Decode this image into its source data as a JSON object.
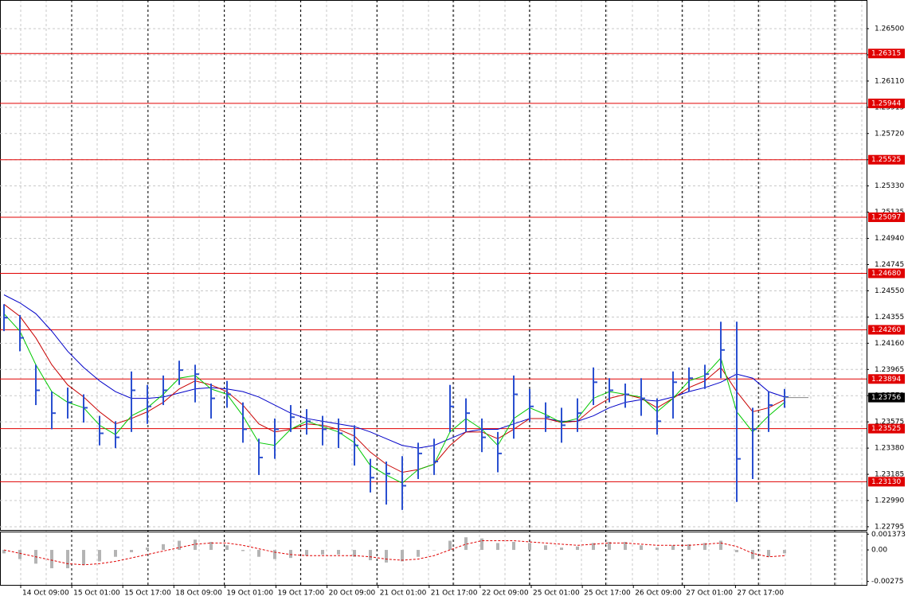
{
  "chart_data": {
    "type": "ohlc",
    "high": [
      1.2445,
      1.2437,
      1.24,
      1.238,
      1.2383,
      1.2378,
      1.2362,
      1.2358,
      1.2395,
      1.2385,
      1.2392,
      1.2403,
      1.24,
      1.2386,
      1.2388,
      1.2372,
      1.2345,
      1.236,
      1.237,
      1.2367,
      1.2362,
      1.236,
      1.2355,
      1.233,
      1.2328,
      1.2332,
      1.2342,
      1.2345,
      1.2385,
      1.2375,
      1.236,
      1.235,
      1.2392,
      1.2382,
      1.2372,
      1.2368,
      1.2375,
      1.2398,
      1.239,
      1.2386,
      1.239,
      1.2375,
      1.2395,
      1.2398,
      1.24,
      1.2432,
      1.2432,
      1.2368,
      1.238,
      1.2382
    ],
    "low": [
      1.2425,
      1.241,
      1.237,
      1.2352,
      1.236,
      1.2357,
      1.234,
      1.2338,
      1.235,
      1.2356,
      1.237,
      1.2385,
      1.2372,
      1.236,
      1.2368,
      1.2342,
      1.2318,
      1.233,
      1.235,
      1.2348,
      1.234,
      1.2338,
      1.2325,
      1.2305,
      1.2296,
      1.2292,
      1.2315,
      1.2318,
      1.235,
      1.235,
      1.2335,
      1.232,
      1.2345,
      1.2358,
      1.235,
      1.2342,
      1.235,
      1.237,
      1.2372,
      1.2368,
      1.2362,
      1.2348,
      1.236,
      1.238,
      1.2382,
      1.239,
      1.2298,
      1.2315,
      1.235,
      1.2368
    ],
    "close": [
      1.2435,
      1.242,
      1.2381,
      1.2364,
      1.2372,
      1.2368,
      1.2349,
      1.2346,
      1.2381,
      1.2369,
      1.2381,
      1.2396,
      1.2393,
      1.2375,
      1.2378,
      1.2352,
      1.2331,
      1.2352,
      1.2361,
      1.2358,
      1.2352,
      1.2349,
      1.234,
      1.2316,
      1.2319,
      1.231,
      1.2334,
      1.2328,
      1.2369,
      1.2364,
      1.2346,
      1.2334,
      1.2378,
      1.2369,
      1.2361,
      1.2355,
      1.2364,
      1.2387,
      1.2381,
      1.2378,
      1.2375,
      1.2358,
      1.2387,
      1.239,
      1.2393,
      1.2411,
      1.233,
      1.2352,
      1.237,
      1.2376
    ],
    "bar_color": "#2a4fd0",
    "series": [
      {
        "color": "#0000c8",
        "values": [
          1.2452,
          1.2446,
          1.2438,
          1.2425,
          1.241,
          1.2398,
          1.2388,
          1.238,
          1.2375,
          1.2375,
          1.2376,
          1.2379,
          1.2382,
          1.2383,
          1.2382,
          1.238,
          1.2376,
          1.237,
          1.2364,
          1.236,
          1.2358,
          1.2356,
          1.2354,
          1.235,
          1.2345,
          1.234,
          1.2338,
          1.234,
          1.2345,
          1.235,
          1.2352,
          1.2352,
          1.2356,
          1.236,
          1.236,
          1.2358,
          1.2358,
          1.2362,
          1.2368,
          1.2372,
          1.2374,
          1.2373,
          1.2376,
          1.238,
          1.2383,
          1.2387,
          1.2393,
          1.239,
          1.238,
          1.2376
        ]
      },
      {
        "color": "#c80000",
        "values": [
          1.2445,
          1.2436,
          1.242,
          1.24,
          1.2385,
          1.2376,
          1.2365,
          1.2356,
          1.236,
          1.2365,
          1.2372,
          1.2382,
          1.2388,
          1.2385,
          1.238,
          1.237,
          1.2356,
          1.235,
          1.2352,
          1.2356,
          1.2355,
          1.2352,
          1.2347,
          1.2335,
          1.2326,
          1.232,
          1.2322,
          1.2326,
          1.234,
          1.235,
          1.235,
          1.2345,
          1.2352,
          1.236,
          1.236,
          1.2357,
          1.2358,
          1.2368,
          1.2375,
          1.2378,
          1.2375,
          1.2368,
          1.2375,
          1.2383,
          1.2388,
          1.2398,
          1.238,
          1.2365,
          1.2368,
          1.2374
        ]
      },
      {
        "color": "#00c800",
        "values": [
          1.2438,
          1.2425,
          1.24,
          1.238,
          1.2372,
          1.2368,
          1.2355,
          1.2348,
          1.2362,
          1.2368,
          1.2378,
          1.239,
          1.2392,
          1.2382,
          1.2378,
          1.2362,
          1.2342,
          1.234,
          1.2352,
          1.2358,
          1.2354,
          1.235,
          1.2342,
          1.2325,
          1.2318,
          1.2312,
          1.2322,
          1.2326,
          1.235,
          1.236,
          1.2352,
          1.234,
          1.236,
          1.2368,
          1.2363,
          1.2357,
          1.236,
          1.2375,
          1.238,
          1.2378,
          1.2376,
          1.2365,
          1.2375,
          1.2388,
          1.2392,
          1.2405,
          1.2365,
          1.235,
          1.2362,
          1.2372
        ]
      }
    ],
    "ylim": [
      1.22771,
      1.26713
    ],
    "yticks": [
      {
        "value": 1.22795,
        "label": "1.22795"
      },
      {
        "value": 1.2299,
        "label": "1.22990"
      },
      {
        "value": 1.23185,
        "label": "1.23185"
      },
      {
        "value": 1.2338,
        "label": "1.23380"
      },
      {
        "value": 1.23575,
        "label": "1.23575"
      },
      {
        "value": 1.2377,
        "label": "1.23770"
      },
      {
        "value": 1.23965,
        "label": "1.23965"
      },
      {
        "value": 1.2416,
        "label": "1.24160"
      },
      {
        "value": 1.24355,
        "label": "1.24355"
      },
      {
        "value": 1.2455,
        "label": "1.24550"
      },
      {
        "value": 1.24745,
        "label": "1.24745"
      },
      {
        "value": 1.2494,
        "label": "1.24940"
      },
      {
        "value": 1.25135,
        "label": "1.25135"
      },
      {
        "value": 1.2533,
        "label": "1.25330"
      },
      {
        "value": 1.25525,
        "label": "1.25525"
      },
      {
        "value": 1.2572,
        "label": "1.25720"
      },
      {
        "value": 1.25915,
        "label": "1.25915"
      },
      {
        "value": 1.2611,
        "label": "1.26110"
      },
      {
        "value": 1.26305,
        "label": "1.26305"
      },
      {
        "value": 1.265,
        "label": "1.26500"
      }
    ],
    "levels": [
      {
        "value": 1.26315,
        "label": "1.26315"
      },
      {
        "value": 1.25944,
        "label": "1.25944"
      },
      {
        "value": 1.25525,
        "label": "1.25525"
      },
      {
        "value": 1.25097,
        "label": "1.25097"
      },
      {
        "value": 1.2468,
        "label": "1.24680"
      },
      {
        "value": 1.2426,
        "label": "1.24260"
      },
      {
        "value": 1.23894,
        "label": "1.23894"
      },
      {
        "value": 1.23525,
        "label": "1.23525"
      },
      {
        "value": 1.2313,
        "label": "1.23130"
      }
    ],
    "level_color": "#e00000",
    "current_price": {
      "value": 1.23756,
      "label": "1.23756"
    },
    "x_labels": [
      "14 Oct 09:00",
      "15 Oct 01:00",
      "15 Oct 17:00",
      "18 Oct 09:00",
      "19 Oct 01:00",
      "19 Oct 17:00",
      "20 Oct 09:00",
      "21 Oct 01:00",
      "21 Oct 17:00",
      "22 Oct 09:00",
      "25 Oct 01:00",
      "25 Oct 17:00",
      "26 Oct 09:00",
      "27 Oct 01:00",
      "27 Oct 17:00"
    ],
    "grid": true,
    "oscillator": {
      "ylim": [
        -0.00305,
        0.0016
      ],
      "yticks": [
        {
          "value": 0.001373,
          "label": "0.001373"
        },
        {
          "value": 0,
          "label": "0.00"
        },
        {
          "value": -0.00275,
          "label": "-0.00275"
        }
      ],
      "histogram": [
        -0.0003,
        -0.0008,
        -0.0012,
        -0.0016,
        -0.0016,
        -0.0013,
        -0.001,
        -0.0006,
        -0.0002,
        0.0002,
        0.0005,
        0.0008,
        0.0009,
        0.0007,
        0.0004,
        -0.0001,
        -0.0006,
        -0.0008,
        -0.0007,
        -0.0005,
        -0.0004,
        -0.0004,
        -0.0006,
        -0.0009,
        -0.0011,
        -0.001,
        -0.0006,
        0.0,
        0.0008,
        0.0011,
        0.001,
        0.0006,
        0.0007,
        0.0006,
        0.0004,
        0.0002,
        0.0003,
        0.0006,
        0.0007,
        0.0007,
        0.0004,
        0.0002,
        0.0004,
        0.0005,
        0.0006,
        0.0008,
        -0.0002,
        -0.0008,
        -0.0006,
        -0.0003
      ],
      "histogram_color": "#b4b4b4",
      "signal": [
        0.0,
        -0.0003,
        -0.0006,
        -0.0009,
        -0.0012,
        -0.0013,
        -0.0012,
        -0.001,
        -0.0007,
        -0.0004,
        -0.0001,
        0.0002,
        0.0005,
        0.0006,
        0.0006,
        0.0004,
        0.0001,
        -0.0002,
        -0.0004,
        -0.0005,
        -0.0005,
        -0.0005,
        -0.0005,
        -0.0006,
        -0.0008,
        -0.0009,
        -0.0008,
        -0.0005,
        0.0,
        0.0005,
        0.0008,
        0.0008,
        0.0008,
        0.0007,
        0.0006,
        0.0005,
        0.0004,
        0.0005,
        0.0006,
        0.0006,
        0.0005,
        0.0004,
        0.0004,
        0.0004,
        0.0005,
        0.0006,
        0.0003,
        -0.0003,
        -0.0006,
        -0.0005
      ],
      "signal_color": "#e00000"
    }
  }
}
